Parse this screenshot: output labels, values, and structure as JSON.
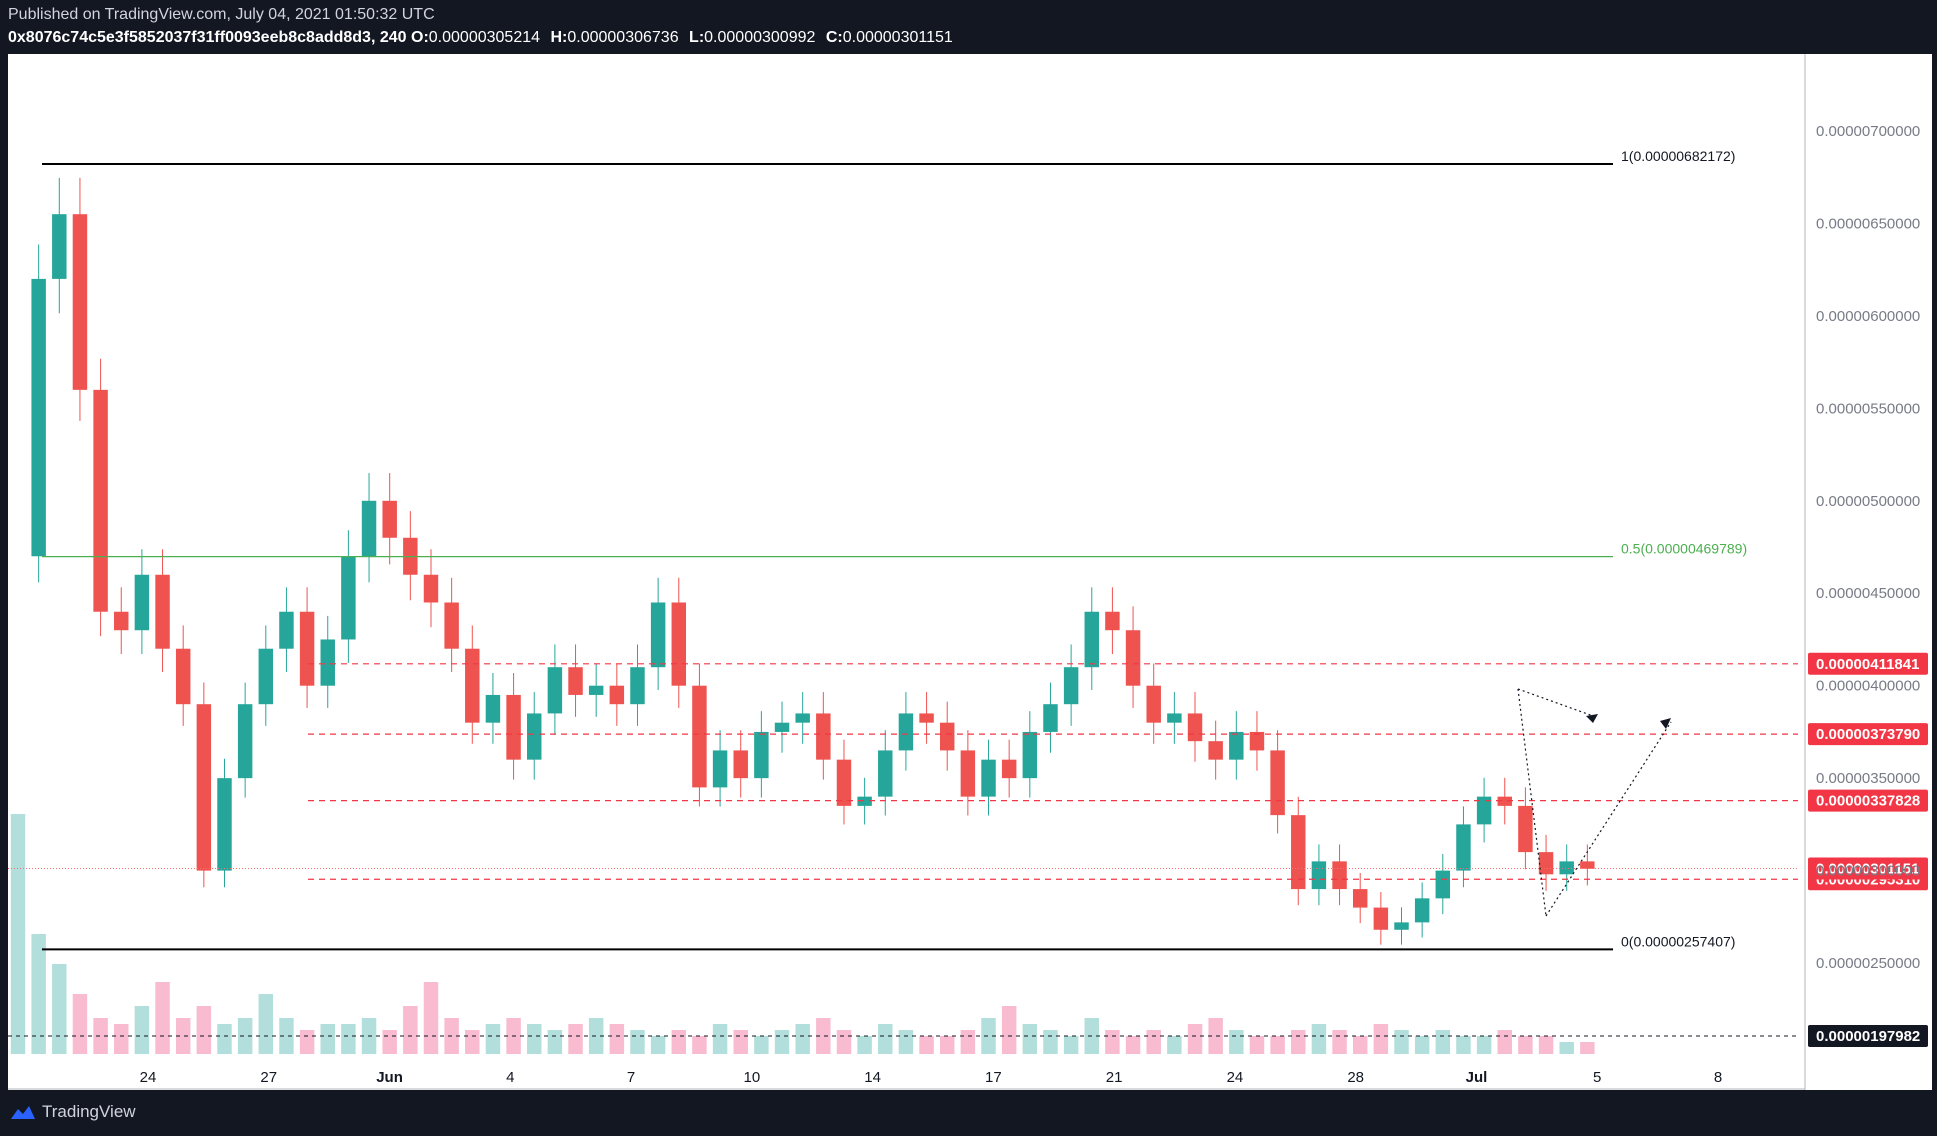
{
  "header": {
    "published": "Published on TradingView.com, July 04, 2021 01:50:32 UTC",
    "symbol": "0x8076c74c5e3f5852037f31ff0093eeb8c8add8d3, 240",
    "open_label": "O:",
    "open_value": "0.00000305214",
    "high_label": "H:",
    "high_value": "0.00000306736",
    "low_label": "L:",
    "low_value": "0.00000300992",
    "close_label": "C:",
    "close_value": "0.00000301151"
  },
  "footer": {
    "brand": "TradingView",
    "logo_icon": "tradingview-logo-icon"
  },
  "colors": {
    "background": "#131722",
    "frame": "#ffffff",
    "up": "#26a69a",
    "down": "#ef5350",
    "volume_up": "#b2dfdb",
    "volume_down": "#f8bbd0",
    "fib_line": "#000000",
    "fib_mid": "#4caf50",
    "level": "#f23645",
    "last_price": "#f23645",
    "current_line": "#ff6d6d"
  },
  "chart_data": {
    "type": "candlestick",
    "x_tick_labels": [
      "24",
      "27",
      "Jun",
      "4",
      "7",
      "10",
      "14",
      "17",
      "21",
      "24",
      "28",
      "Jul",
      "5",
      "8"
    ],
    "y_tick_labels": [
      "0.00000700000",
      "0.00000650000",
      "0.00000600000",
      "0.00000550000",
      "0.00000500000",
      "0.00000450000",
      "0.00000400000",
      "0.00000350000",
      "0.00000300000",
      "0.00000250000"
    ],
    "ylim": [
      1.9e-06,
      7.2e-06
    ],
    "grid": false,
    "fib_levels": [
      {
        "label": "1(0.00000682172)",
        "price": 6.82172e-06
      },
      {
        "label": "0.5(0.00000469789)",
        "price": 4.69789e-06
      },
      {
        "label": "0(0.00000257407)",
        "price": 2.57407e-06
      }
    ],
    "horizontal_levels": [
      {
        "label": "0.00000411841",
        "price": 4.11841e-06
      },
      {
        "label": "0.00000373790",
        "price": 3.7379e-06
      },
      {
        "label": "0.00000337828",
        "price": 3.37828e-06
      },
      {
        "label": "0.00000295310",
        "price": 2.9531e-06
      }
    ],
    "last_price": {
      "label": "0.00000301151",
      "price": 3.01151e-06
    },
    "volume_label": {
      "label": "0.00000197982",
      "price": 1.97982e-06
    },
    "price_series_close": [
      4.7e-06,
      6.2e-06,
      6.55e-06,
      5.6e-06,
      4.4e-06,
      4.3e-06,
      4.6e-06,
      4.2e-06,
      3.9e-06,
      3e-06,
      3.5e-06,
      3.9e-06,
      4.2e-06,
      4.4e-06,
      4e-06,
      4.25e-06,
      4.7e-06,
      5e-06,
      4.8e-06,
      4.6e-06,
      4.45e-06,
      4.2e-06,
      3.8e-06,
      3.95e-06,
      3.6e-06,
      3.85e-06,
      4.1e-06,
      3.95e-06,
      4e-06,
      3.9e-06,
      4.1e-06,
      4.45e-06,
      4e-06,
      3.45e-06,
      3.65e-06,
      3.5e-06,
      3.75e-06,
      3.8e-06,
      3.85e-06,
      3.6e-06,
      3.35e-06,
      3.4e-06,
      3.65e-06,
      3.85e-06,
      3.8e-06,
      3.65e-06,
      3.4e-06,
      3.6e-06,
      3.5e-06,
      3.75e-06,
      3.9e-06,
      4.1e-06,
      4.4e-06,
      4.3e-06,
      4e-06,
      3.8e-06,
      3.85e-06,
      3.7e-06,
      3.6e-06,
      3.75e-06,
      3.65e-06,
      3.3e-06,
      2.9e-06,
      3.05e-06,
      2.9e-06,
      2.8e-06,
      2.68e-06,
      2.72e-06,
      2.85e-06,
      3e-06,
      3.25e-06,
      3.4e-06,
      3.35e-06,
      3.1e-06,
      2.98e-06,
      3.05e-06,
      3.01e-06
    ],
    "volume_series": [
      40,
      20,
      15,
      10,
      6,
      5,
      8,
      12,
      6,
      8,
      5,
      6,
      10,
      6,
      4,
      5,
      5,
      6,
      4,
      8,
      12,
      6,
      4,
      5,
      6,
      5,
      4,
      5,
      6,
      5,
      4,
      3,
      4,
      3,
      5,
      4,
      3,
      4,
      5,
      6,
      4,
      3,
      5,
      4,
      3,
      3,
      4,
      6,
      8,
      5,
      4,
      3,
      6,
      4,
      3,
      4,
      3,
      5,
      6,
      4,
      3,
      3,
      4,
      5,
      4,
      3,
      5,
      4,
      3,
      4,
      3,
      3,
      4,
      3,
      3,
      2,
      2
    ]
  }
}
